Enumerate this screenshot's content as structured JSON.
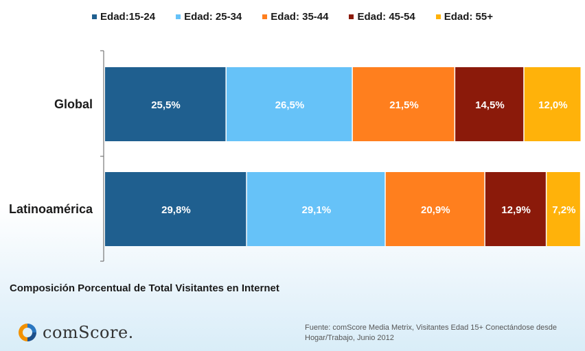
{
  "chart_data": {
    "type": "bar",
    "orientation": "horizontal",
    "stacked": true,
    "categories": [
      "Global",
      "Latinoamérica"
    ],
    "series": [
      {
        "name": "Edad:15-24",
        "values": [
          25.5,
          29.8
        ],
        "labels": [
          "25,5%",
          "29,8%"
        ],
        "color": "#1f5f8f"
      },
      {
        "name": "Edad: 25-34",
        "values": [
          26.5,
          29.1
        ],
        "labels": [
          "26,5%",
          "29,1%"
        ],
        "color": "#66c2f8"
      },
      {
        "name": "Edad: 35-44",
        "values": [
          21.5,
          20.9
        ],
        "labels": [
          "21,5%",
          "20,9%"
        ],
        "color": "#ff7f1e"
      },
      {
        "name": "Edad: 45-54",
        "values": [
          14.5,
          12.9
        ],
        "labels": [
          "14,5%",
          "12,9%"
        ],
        "color": "#8b1a0a"
      },
      {
        "name": "Edad: 55+",
        "values": [
          12.0,
          7.2
        ],
        "labels": [
          "12,0%",
          "7,2%"
        ],
        "color": "#ffb20a"
      }
    ],
    "title": "Composición Porcentual de Total Visitantes en Internet",
    "xlim": [
      0,
      100
    ],
    "legend_position": "top",
    "grid": false
  },
  "footer": {
    "source": "Fuente: comScore Media Metrix, Visitantes Edad 15+ Conectándose desde Hogar/Trabajo, Junio 2012",
    "logo_text": "comScore."
  }
}
